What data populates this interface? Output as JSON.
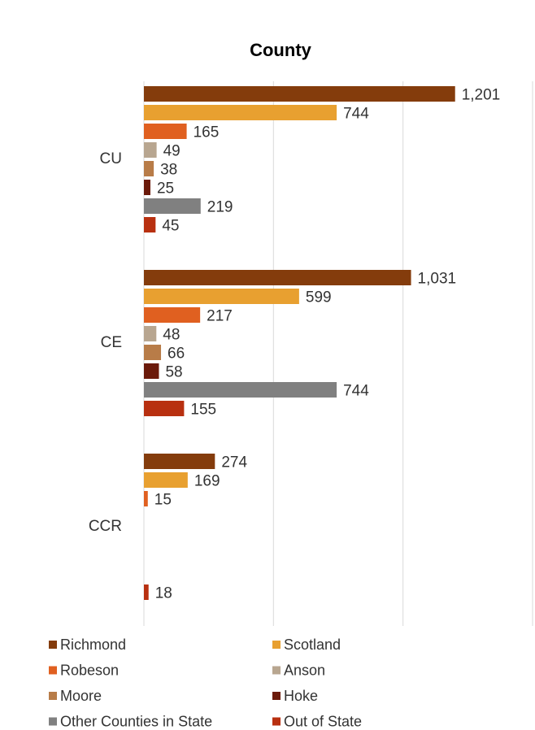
{
  "chart_data": {
    "type": "hbar",
    "title": "County",
    "categories": [
      "CU",
      "CE",
      "CCR"
    ],
    "xlim": [
      0,
      1500
    ],
    "xticks": [
      0,
      500,
      1000,
      1500
    ],
    "grid": true,
    "series": [
      {
        "name": "Richmond",
        "color": "#843c0c",
        "values": [
          1201,
          1031,
          274
        ],
        "value_labels": [
          "1,201",
          "1,031",
          "274"
        ]
      },
      {
        "name": "Scotland",
        "color": "#e8a030",
        "values": [
          744,
          599,
          169
        ]
      },
      {
        "name": "Robeson",
        "color": "#e06020",
        "values": [
          165,
          217,
          15
        ]
      },
      {
        "name": "Anson",
        "color": "#b8a690",
        "values": [
          49,
          48,
          null
        ]
      },
      {
        "name": "Moore",
        "color": "#b87c48",
        "values": [
          38,
          66,
          null
        ]
      },
      {
        "name": "Hoke",
        "color": "#6b1a0a",
        "values": [
          25,
          58,
          null
        ]
      },
      {
        "name": "Other Counties in State",
        "color": "#808080",
        "values": [
          219,
          744,
          null
        ]
      },
      {
        "name": "Out of State",
        "color": "#b83010",
        "values": [
          45,
          155,
          18
        ]
      }
    ]
  }
}
